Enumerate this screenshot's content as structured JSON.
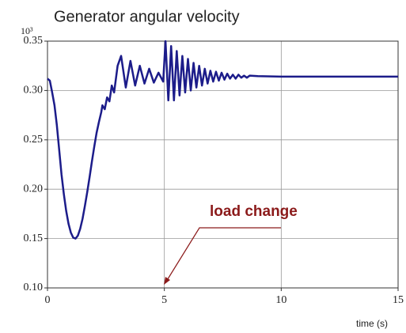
{
  "chart_data": {
    "type": "line",
    "title": "Generator angular velocity",
    "y_multiplier": "10³",
    "x_label": "time (s)",
    "annotation": "load change",
    "xlim": [
      0,
      15
    ],
    "xticks": [
      0,
      5,
      10,
      15
    ],
    "ylim": [
      0.1,
      0.35
    ],
    "yticks": [
      {
        "value": 0.1,
        "label": "0.10"
      },
      0.15,
      {
        "value": 0.2,
        "label": "0.20"
      },
      0.25,
      {
        "value": 0.3,
        "label": "0.30"
      },
      0.35
    ],
    "grid": true,
    "x": [
      0,
      0.1,
      0.2,
      0.3,
      0.4,
      0.5,
      0.6,
      0.7,
      0.8,
      0.9,
      1.0,
      1.1,
      1.2,
      1.3,
      1.4,
      1.5,
      1.6,
      1.7,
      1.8,
      1.9,
      2.0,
      2.1,
      2.2,
      2.3,
      2.35,
      2.45,
      2.55,
      2.65,
      2.75,
      2.85,
      3.0,
      3.15,
      3.35,
      3.55,
      3.75,
      3.95,
      4.15,
      4.35,
      4.55,
      4.75,
      4.95,
      5.05,
      5.17,
      5.29,
      5.41,
      5.53,
      5.65,
      5.77,
      5.89,
      6.01,
      6.13,
      6.25,
      6.37,
      6.49,
      6.61,
      6.73,
      6.85,
      6.97,
      7.09,
      7.21,
      7.33,
      7.45,
      7.57,
      7.69,
      7.81,
      7.93,
      8.05,
      8.17,
      8.29,
      8.41,
      8.53,
      8.65,
      9.0,
      10.0,
      12.0,
      15.0
    ],
    "series": [
      {
        "name": "angular velocity",
        "color": "#1c1c8a",
        "values": [
          0.312,
          0.31,
          0.298,
          0.285,
          0.265,
          0.24,
          0.215,
          0.195,
          0.178,
          0.165,
          0.156,
          0.151,
          0.15,
          0.153,
          0.16,
          0.17,
          0.183,
          0.197,
          0.212,
          0.228,
          0.243,
          0.257,
          0.268,
          0.278,
          0.285,
          0.281,
          0.293,
          0.289,
          0.305,
          0.298,
          0.325,
          0.335,
          0.303,
          0.33,
          0.305,
          0.325,
          0.307,
          0.322,
          0.308,
          0.318,
          0.309,
          0.35,
          0.29,
          0.345,
          0.29,
          0.34,
          0.295,
          0.335,
          0.298,
          0.332,
          0.3,
          0.328,
          0.303,
          0.325,
          0.305,
          0.322,
          0.307,
          0.32,
          0.309,
          0.319,
          0.31,
          0.318,
          0.311,
          0.317,
          0.312,
          0.316,
          0.312,
          0.316,
          0.313,
          0.315,
          0.313,
          0.315,
          0.3145,
          0.314,
          0.314,
          0.314
        ]
      }
    ]
  }
}
